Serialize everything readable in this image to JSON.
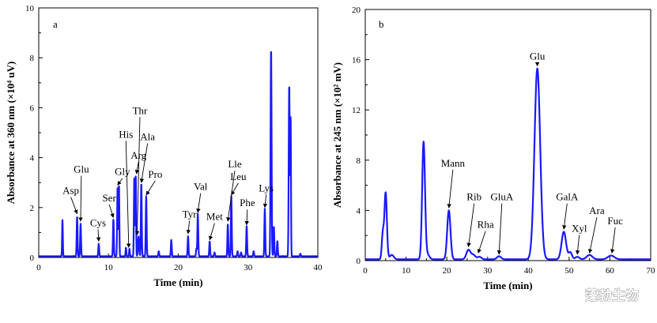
{
  "watermark": "蓬勃生物",
  "colors": {
    "trace": "#1a1aff",
    "axis": "#000000"
  },
  "chart_data": [
    {
      "type": "line",
      "panel": "a",
      "xlabel": "Time (min)",
      "ylabel": "Absorbance at 360 nm (×10⁴ uV)",
      "xlim": [
        0,
        40
      ],
      "ylim": [
        0,
        10
      ],
      "xticks": [
        0,
        10,
        20,
        30,
        40
      ],
      "yticks": [
        0,
        2,
        4,
        6,
        8,
        10
      ],
      "baseline": 0.05,
      "peaks": [
        {
          "t": 3.4,
          "h": 1.45,
          "w": 0.05
        },
        {
          "t": 5.5,
          "h": 1.6,
          "w": 0.06
        },
        {
          "t": 6.0,
          "h": 1.3,
          "w": 0.06
        },
        {
          "t": 8.6,
          "h": 0.5,
          "w": 0.06
        },
        {
          "t": 10.7,
          "h": 1.5,
          "w": 0.06
        },
        {
          "t": 11.3,
          "h": 2.8,
          "w": 0.06
        },
        {
          "t": 11.5,
          "h": 2.9,
          "w": 0.05
        },
        {
          "t": 12.5,
          "h": 0.35,
          "w": 0.05
        },
        {
          "t": 13.0,
          "h": 0.3,
          "w": 0.05
        },
        {
          "t": 13.7,
          "h": 3.2,
          "w": 0.06
        },
        {
          "t": 13.9,
          "h": 3.3,
          "w": 0.05
        },
        {
          "t": 14.3,
          "h": 0.8,
          "w": 0.08
        },
        {
          "t": 14.7,
          "h": 2.95,
          "w": 0.06
        },
        {
          "t": 15.4,
          "h": 2.4,
          "w": 0.06
        },
        {
          "t": 17.2,
          "h": 0.2,
          "w": 0.06
        },
        {
          "t": 19.0,
          "h": 0.65,
          "w": 0.06
        },
        {
          "t": 21.4,
          "h": 0.8,
          "w": 0.06
        },
        {
          "t": 22.6,
          "h": 0.3,
          "w": 0.06
        },
        {
          "t": 22.8,
          "h": 1.7,
          "w": 0.06
        },
        {
          "t": 24.5,
          "h": 0.6,
          "w": 0.06
        },
        {
          "t": 25.2,
          "h": 0.15,
          "w": 0.06
        },
        {
          "t": 27.1,
          "h": 1.3,
          "w": 0.06
        },
        {
          "t": 27.6,
          "h": 2.4,
          "w": 0.06
        },
        {
          "t": 28.5,
          "h": 0.2,
          "w": 0.06
        },
        {
          "t": 29.0,
          "h": 0.15,
          "w": 0.06
        },
        {
          "t": 29.8,
          "h": 1.2,
          "w": 0.06
        },
        {
          "t": 30.8,
          "h": 0.2,
          "w": 0.06
        },
        {
          "t": 32.4,
          "h": 1.9,
          "w": 0.06
        },
        {
          "t": 33.3,
          "h": 8.35,
          "w": 0.07
        },
        {
          "t": 33.7,
          "h": 1.2,
          "w": 0.06
        },
        {
          "t": 34.2,
          "h": 0.6,
          "w": 0.06
        },
        {
          "t": 35.9,
          "h": 6.9,
          "w": 0.07
        },
        {
          "t": 36.1,
          "h": 5.6,
          "w": 0.05
        },
        {
          "t": 37.5,
          "h": 0.1,
          "w": 0.06
        }
      ],
      "annotations": [
        {
          "label": "Asp",
          "t": 5.5,
          "y": 1.75,
          "text_t": 4.6,
          "text_y": 2.55
        },
        {
          "label": "Glu",
          "t": 6.0,
          "y": 1.45,
          "text_t": 6.1,
          "text_y": 3.4
        },
        {
          "label": "Cys",
          "t": 8.6,
          "y": 0.65,
          "text_t": 8.5,
          "text_y": 1.25
        },
        {
          "label": "Ser",
          "t": 10.7,
          "y": 1.6,
          "text_t": 10.1,
          "text_y": 2.25
        },
        {
          "label": "Gly",
          "t": 11.3,
          "y": 2.9,
          "text_t": 12.0,
          "text_y": 3.3
        },
        {
          "label": "His",
          "t": 12.9,
          "y": 0.4,
          "text_t": 12.5,
          "text_y": 4.8
        },
        {
          "label": "Thr",
          "t": 14.1,
          "y": 0.9,
          "text_t": 14.5,
          "text_y": 5.75
        },
        {
          "label": "Arg",
          "t": 14.0,
          "y": 3.35,
          "text_t": 14.3,
          "text_y": 3.95
        },
        {
          "label": "Ala",
          "t": 14.7,
          "y": 3.0,
          "text_t": 15.6,
          "text_y": 4.7
        },
        {
          "label": "Pro",
          "t": 15.4,
          "y": 2.5,
          "text_t": 16.7,
          "text_y": 3.2
        },
        {
          "label": "Tyr",
          "t": 21.4,
          "y": 0.95,
          "text_t": 21.6,
          "text_y": 1.6
        },
        {
          "label": "Val",
          "t": 22.8,
          "y": 1.8,
          "text_t": 23.2,
          "text_y": 2.7
        },
        {
          "label": "Met",
          "t": 24.5,
          "y": 0.7,
          "text_t": 25.2,
          "text_y": 1.5
        },
        {
          "label": "Lle",
          "t": 27.1,
          "y": 1.45,
          "text_t": 28.1,
          "text_y": 3.6
        },
        {
          "label": "Leu",
          "t": 27.6,
          "y": 2.5,
          "text_t": 28.6,
          "text_y": 3.1
        },
        {
          "label": "Phe",
          "t": 29.8,
          "y": 1.3,
          "text_t": 29.9,
          "text_y": 2.05
        },
        {
          "label": "Lys",
          "t": 32.4,
          "y": 2.0,
          "text_t": 32.6,
          "text_y": 2.65
        }
      ]
    },
    {
      "type": "line",
      "panel": "b",
      "xlabel": "Time (min)",
      "ylabel": "Absorbance at 245 nm (×10² mV)",
      "xlim": [
        0,
        70
      ],
      "ylim": [
        0,
        20
      ],
      "xticks": [
        0,
        10,
        20,
        30,
        40,
        50,
        60,
        70
      ],
      "yticks": [
        0,
        4,
        8,
        12,
        16,
        20
      ],
      "baseline": 0.1,
      "peaks": [
        {
          "t": 4.3,
          "h": 2.0,
          "w": 0.25
        },
        {
          "t": 5.0,
          "h": 5.3,
          "w": 0.3
        },
        {
          "t": 6.5,
          "h": 0.35,
          "w": 0.5
        },
        {
          "t": 14.3,
          "h": 9.3,
          "w": 0.35
        },
        {
          "t": 15.2,
          "h": 0.4,
          "w": 0.5
        },
        {
          "t": 20.5,
          "h": 3.9,
          "w": 0.4
        },
        {
          "t": 25.3,
          "h": 0.75,
          "w": 0.5
        },
        {
          "t": 26.5,
          "h": 0.35,
          "w": 0.5
        },
        {
          "t": 28.0,
          "h": 0.2,
          "w": 0.5
        },
        {
          "t": 32.8,
          "h": 0.25,
          "w": 0.5
        },
        {
          "t": 42.2,
          "h": 15.2,
          "w": 0.7
        },
        {
          "t": 48.7,
          "h": 2.2,
          "w": 0.55
        },
        {
          "t": 50.3,
          "h": 0.55,
          "w": 0.4
        },
        {
          "t": 52.0,
          "h": 0.2,
          "w": 0.5
        },
        {
          "t": 55.0,
          "h": 0.35,
          "w": 0.7
        },
        {
          "t": 60.3,
          "h": 0.3,
          "w": 0.8
        }
      ],
      "annotations": [
        {
          "label": "Mann",
          "t": 20.5,
          "y": 4.2,
          "text_t": 21.5,
          "text_y": 7.5
        },
        {
          "label": "Rib",
          "t": 25.3,
          "y": 1.1,
          "text_t": 26.7,
          "text_y": 4.8
        },
        {
          "label": "Rha",
          "t": 27.7,
          "y": 0.6,
          "text_t": 29.5,
          "text_y": 2.6
        },
        {
          "label": "GluA",
          "t": 32.8,
          "y": 0.5,
          "text_t": 33.5,
          "text_y": 4.8
        },
        {
          "label": "Glu",
          "t": 42.2,
          "y": 15.5,
          "text_t": 42.2,
          "text_y": 16.0
        },
        {
          "label": "GalA",
          "t": 48.7,
          "y": 2.5,
          "text_t": 49.5,
          "text_y": 4.8
        },
        {
          "label": "Xyl",
          "t": 52.0,
          "y": 0.5,
          "text_t": 52.5,
          "text_y": 2.3
        },
        {
          "label": "Ara",
          "t": 55.0,
          "y": 0.6,
          "text_t": 56.8,
          "text_y": 3.7
        },
        {
          "label": "Fuc",
          "t": 60.5,
          "y": 0.6,
          "text_t": 61.3,
          "text_y": 2.9
        }
      ]
    }
  ]
}
